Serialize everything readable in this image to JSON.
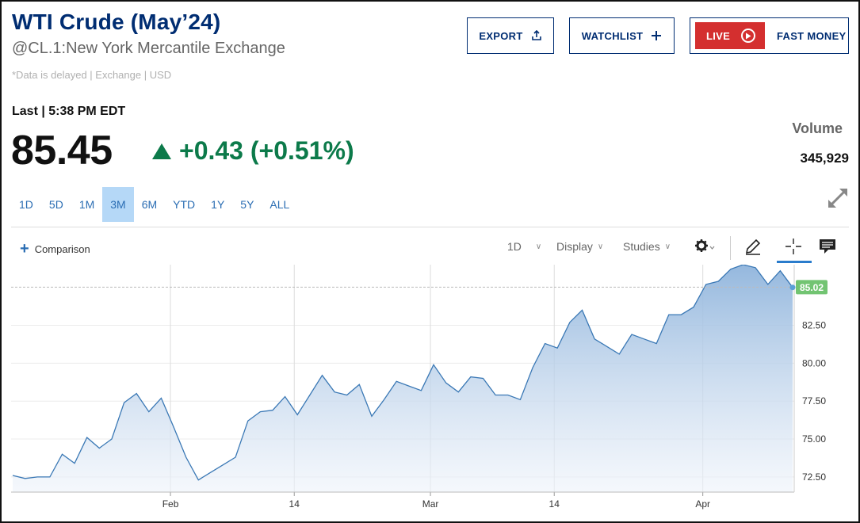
{
  "header": {
    "title": "WTI Crude (May’24)",
    "exchange": "@CL.1:New York Mercantile Exchange",
    "disclaimer": "*Data is delayed | Exchange | USD"
  },
  "actions": {
    "export_label": "EXPORT",
    "watchlist_label": "WATCHLIST",
    "live_label": "LIVE",
    "fast_money_label": "FAST MONEY"
  },
  "quote": {
    "last_label": "Last | 5:38 PM EDT",
    "price": "85.45",
    "change": "+0.43 (+0.51%)",
    "volume_label": "Volume",
    "volume_value": "345,929"
  },
  "ranges": [
    "1D",
    "5D",
    "1M",
    "3M",
    "6M",
    "YTD",
    "1Y",
    "5Y",
    "ALL"
  ],
  "active_range": "3M",
  "toolbar": {
    "comparison_label": "Comparison",
    "interval_label": "1D",
    "display_label": "Display",
    "studies_label": "Studies"
  },
  "colors": {
    "accent": "#002d72",
    "positive": "#0c7a4a",
    "live": "#d42f2f",
    "line": "#3a78b5",
    "last_tag": "#72c472"
  },
  "chart_data": {
    "type": "area",
    "x_tick_labels": [
      "Feb",
      "14",
      "Mar",
      "14",
      "Apr"
    ],
    "y_tick_labels": [
      "72.50",
      "75.00",
      "77.50",
      "80.00",
      "82.50"
    ],
    "last_price_tag": "85.02",
    "ylim": [
      71.5,
      86.5
    ],
    "grid": true,
    "series": [
      {
        "values": [
          72.6,
          72.4,
          72.5,
          72.5,
          74.0,
          73.4,
          75.1,
          74.4,
          75.0,
          77.4,
          78.0,
          76.8,
          77.7,
          75.8,
          73.8,
          72.3,
          72.8,
          73.3,
          73.8,
          76.2,
          76.8,
          76.9,
          77.8,
          76.6,
          77.9,
          79.2,
          78.1,
          77.9,
          78.6,
          76.5,
          77.6,
          78.8,
          78.5,
          78.2,
          79.9,
          78.7,
          78.1,
          79.1,
          79.0,
          77.9,
          77.9,
          77.6,
          79.7,
          81.3,
          81.0,
          82.7,
          83.5,
          81.6,
          81.1,
          80.6,
          81.9,
          81.6,
          81.3,
          83.2,
          83.2,
          83.7,
          85.2,
          85.4,
          86.2,
          86.5,
          86.3,
          85.2,
          86.1,
          85.0
        ]
      }
    ]
  }
}
